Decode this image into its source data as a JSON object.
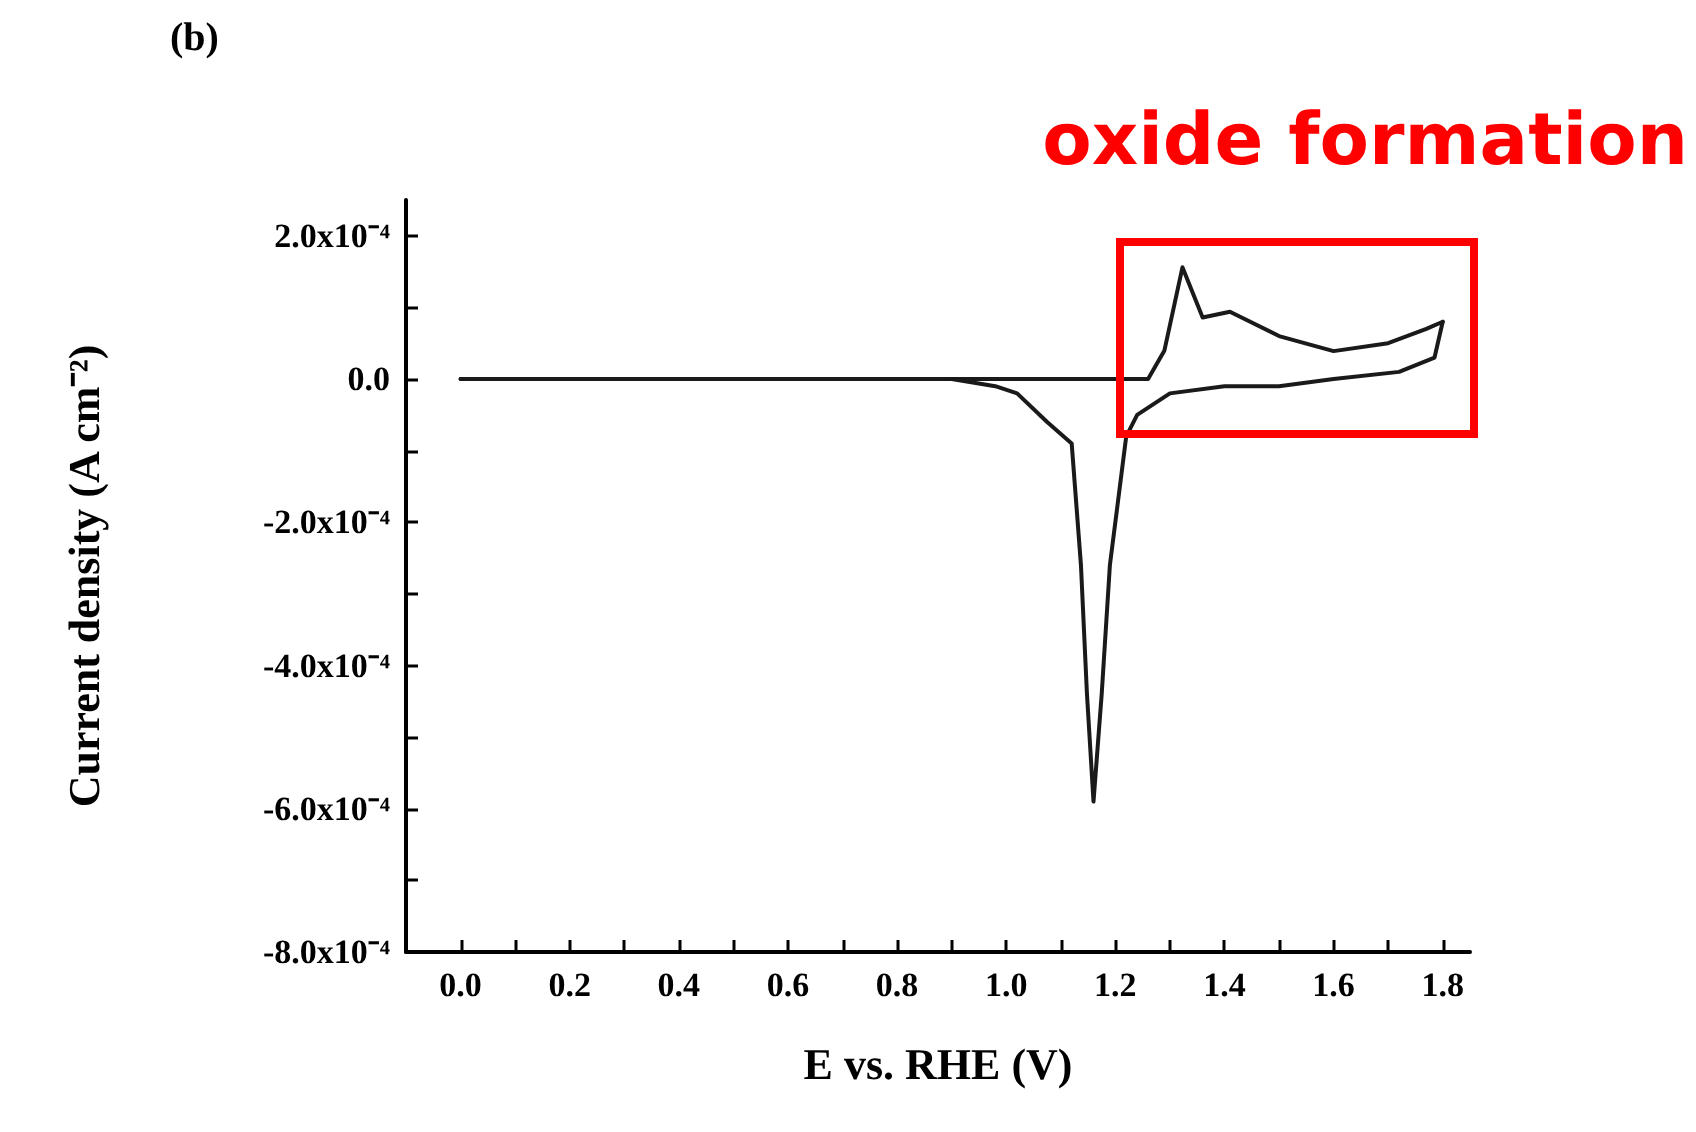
{
  "chart_data": {
    "type": "line",
    "title": "(b)",
    "xlabel": "E vs. RHE (V)",
    "ylabel": "Current density (A cm⁻²)",
    "annotations": [
      "oxide formation"
    ],
    "series": [
      {
        "color": "#1a1a1a",
        "x": [
          0,
          0.5,
          1.0,
          1.2,
          1.26,
          1.29,
          1.323,
          1.36,
          1.41,
          1.5,
          1.6,
          1.7,
          1.77,
          1.8
        ],
        "values": [
          0,
          0,
          0,
          0,
          0,
          4e-05,
          0.000156,
          8.6e-05,
          9.4e-05,
          6e-05,
          3.9e-05,
          5e-05,
          7e-05,
          8e-05
        ]
      },
      {
        "color": "#1a1a1a",
        "x": [
          1.8,
          1.785,
          1.72,
          1.6,
          1.5,
          1.4,
          1.3,
          1.24,
          1.22,
          1.19,
          1.175,
          1.16,
          1.148,
          1.137,
          1.12,
          1.075,
          1.02,
          0.98,
          0.9,
          0.5,
          0
        ],
        "values": [
          8e-05,
          3e-05,
          1e-05,
          0,
          -1e-05,
          -1e-05,
          -2e-05,
          -5e-05,
          -8e-05,
          -0.00026,
          -0.00044,
          -0.00059,
          -0.00044,
          -0.00026,
          -9e-05,
          -6e-05,
          -2e-05,
          -1e-05,
          0,
          0,
          0
        ]
      }
    ],
    "xlim": [
      -0.1,
      1.85
    ],
    "ylim": [
      -0.0008,
      0.00025
    ],
    "xticks": [
      {
        "value": 0,
        "label": "0.0"
      },
      {
        "value": 0.1,
        "label": null
      },
      {
        "value": 0.2,
        "label": "0.2"
      },
      {
        "value": 0.3,
        "label": null
      },
      {
        "value": 0.4,
        "label": "0.4"
      },
      {
        "value": 0.5,
        "label": null
      },
      {
        "value": 0.6,
        "label": "0.6"
      },
      {
        "value": 0.7,
        "label": null
      },
      {
        "value": 0.8,
        "label": "0.8"
      },
      {
        "value": 0.9,
        "label": null
      },
      {
        "value": 1.0,
        "label": "1.0"
      },
      {
        "value": 1.1,
        "label": null
      },
      {
        "value": 1.2,
        "label": "1.2"
      },
      {
        "value": 1.3,
        "label": null
      },
      {
        "value": 1.4,
        "label": "1.4"
      },
      {
        "value": 1.5,
        "label": null
      },
      {
        "value": 1.6,
        "label": "1.6"
      },
      {
        "value": 1.7,
        "label": null
      },
      {
        "value": 1.8,
        "label": "1.8"
      }
    ],
    "yticks": [
      {
        "value": -0.0008,
        "label": "-8.0x10⁻⁴"
      },
      {
        "value": -0.0007,
        "label": null
      },
      {
        "value": -0.0006,
        "label": "-6.0x10⁻⁴"
      },
      {
        "value": -0.0005,
        "label": null
      },
      {
        "value": -0.0004,
        "label": "-4.0x10⁻⁴"
      },
      {
        "value": -0.0003,
        "label": null
      },
      {
        "value": -0.0002,
        "label": "-2.0x10⁻⁴"
      },
      {
        "value": -0.0001,
        "label": null
      },
      {
        "value": 0,
        "label": "0.0"
      },
      {
        "value": 0.0001,
        "label": null
      },
      {
        "value": 0.0002,
        "label": "2.0x10⁻⁴"
      }
    ],
    "grid": false,
    "marker": "none",
    "line_style": "solid"
  }
}
